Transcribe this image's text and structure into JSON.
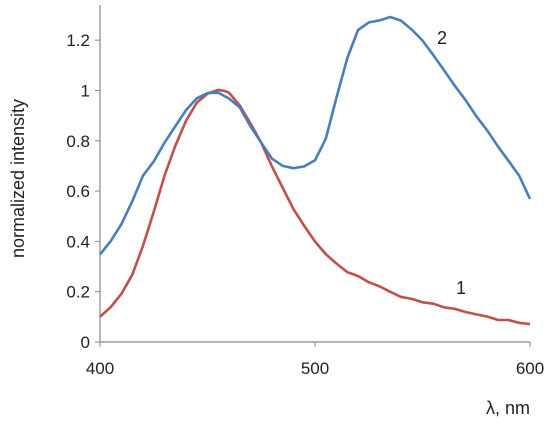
{
  "chart_data": {
    "type": "line",
    "title": "",
    "xlabel": "λ, nm",
    "ylabel": "normalized intensity",
    "xlim": [
      400,
      600
    ],
    "ylim": [
      0,
      1.3
    ],
    "x_ticks": [
      "400",
      "500",
      "600"
    ],
    "y_ticks": [
      "0",
      "0.2",
      "0.4",
      "0.6",
      "0.8",
      "1",
      "1.2"
    ],
    "x_tick_values": [
      400,
      500,
      600
    ],
    "y_tick_values": [
      0,
      0.2,
      0.4,
      0.6,
      0.8,
      1.0,
      1.2
    ],
    "grid": false,
    "legend": "none",
    "series": [
      {
        "label": "1",
        "color": "#c0504d",
        "x": [
          400,
          405,
          410,
          415,
          420,
          425,
          430,
          435,
          440,
          445,
          450,
          455,
          458,
          460,
          465,
          470,
          475,
          480,
          485,
          490,
          495,
          500,
          505,
          510,
          515,
          520,
          525,
          530,
          535,
          540,
          545,
          550,
          555,
          560,
          565,
          570,
          575,
          580,
          585,
          590,
          595,
          600
        ],
        "y": [
          0.1,
          0.14,
          0.19,
          0.27,
          0.38,
          0.52,
          0.66,
          0.78,
          0.88,
          0.95,
          0.99,
          1.0,
          1.0,
          0.99,
          0.94,
          0.87,
          0.79,
          0.7,
          0.61,
          0.53,
          0.46,
          0.4,
          0.35,
          0.31,
          0.28,
          0.26,
          0.24,
          0.22,
          0.2,
          0.18,
          0.17,
          0.16,
          0.15,
          0.14,
          0.13,
          0.12,
          0.11,
          0.1,
          0.09,
          0.085,
          0.078,
          0.07
        ]
      },
      {
        "label": "2",
        "color": "#4a7ebb",
        "x": [
          400,
          405,
          410,
          415,
          420,
          425,
          430,
          435,
          440,
          445,
          450,
          455,
          460,
          465,
          470,
          475,
          480,
          485,
          490,
          495,
          500,
          505,
          510,
          515,
          520,
          525,
          530,
          535,
          540,
          545,
          550,
          555,
          560,
          565,
          570,
          575,
          580,
          585,
          590,
          595,
          600
        ],
        "y": [
          0.35,
          0.4,
          0.47,
          0.56,
          0.66,
          0.72,
          0.79,
          0.86,
          0.92,
          0.97,
          0.99,
          0.99,
          0.97,
          0.93,
          0.86,
          0.79,
          0.73,
          0.7,
          0.69,
          0.7,
          0.72,
          0.81,
          0.97,
          1.13,
          1.24,
          1.27,
          1.28,
          1.29,
          1.28,
          1.24,
          1.2,
          1.14,
          1.08,
          1.02,
          0.96,
          0.9,
          0.84,
          0.78,
          0.72,
          0.66,
          0.57
        ]
      }
    ]
  }
}
